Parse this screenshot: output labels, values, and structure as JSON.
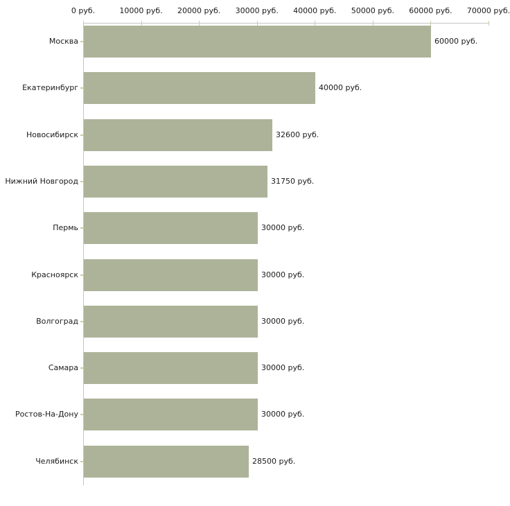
{
  "chart_data": {
    "type": "bar",
    "orientation": "horizontal",
    "title": "",
    "unit": "руб.",
    "categories": [
      "Москва",
      "Екатеринбург",
      "Новосибирск",
      "Нижний Новгород",
      "Пермь",
      "Красноярск",
      "Волгоград",
      "Самара",
      "Ростов-На-Дону",
      "Челябинск"
    ],
    "values": [
      60000,
      40000,
      32600,
      31750,
      30000,
      30000,
      30000,
      30000,
      30000,
      28500
    ],
    "value_labels": [
      "60000 руб.",
      "40000 руб.",
      "32600 руб.",
      "31750 руб.",
      "30000 руб.",
      "30000 руб.",
      "30000 руб.",
      "30000 руб.",
      "30000 руб.",
      "28500 руб."
    ],
    "x_axis": {
      "min": 0,
      "max": 70000,
      "tick_values": [
        0,
        10000,
        20000,
        30000,
        40000,
        50000,
        60000,
        70000
      ],
      "tick_labels": [
        "0 руб.",
        "10000 руб.",
        "20000 руб.",
        "30000 руб.",
        "40000 руб.",
        "50000 руб.",
        "60000 руб.",
        "70000 руб."
      ]
    },
    "ylabel": "",
    "xlabel": "",
    "grid": false,
    "legend": "none"
  },
  "colors": {
    "bar": "#acb399",
    "axis": "#c4c4c4",
    "tick": "#c9cda4",
    "text": "#1a1a1a",
    "background": "#ffffff"
  }
}
